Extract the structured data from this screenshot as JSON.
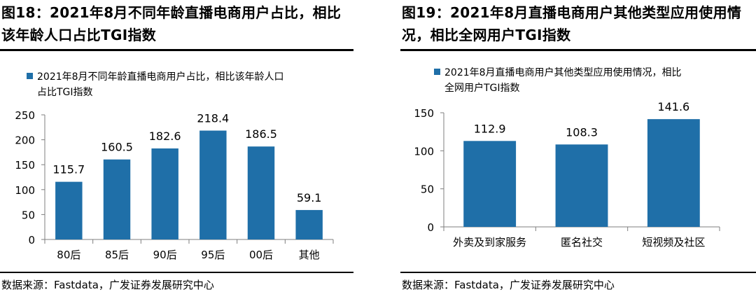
{
  "colors": {
    "bar": "#1f6fa8",
    "axis": "#7f7f7f",
    "text": "#000000"
  },
  "left": {
    "title_line1": "图18：2021年8月不同年龄直播电商用户占比，相比",
    "title_line2": "该年龄人口占比TGI指数",
    "source": "数据来源：Fastdata，广发证券发展研究中心"
  },
  "right": {
    "title_line1": "图19：2021年8月直播电商用户其他类型应用使用情",
    "title_line2": "况，相比全网用户TGI指数",
    "source": "数据来源：Fastdata，广发证券发展研究中心"
  },
  "chart_data": [
    {
      "type": "bar",
      "legend": [
        "2021年8月不同年龄直播电商用户占比，相比该年龄人口",
        "占比TGI指数"
      ],
      "categories": [
        "80后",
        "85后",
        "90后",
        "95后",
        "00后",
        "其他"
      ],
      "values": [
        115.7,
        160.5,
        182.6,
        218.4,
        186.5,
        59.1
      ],
      "value_labels": [
        "115.7",
        "160.5",
        "182.6",
        "218.4",
        "186.5",
        "59.1"
      ],
      "ylim": [
        0,
        250
      ],
      "yticks": [
        0,
        50,
        100,
        150,
        200,
        250
      ],
      "xlabel": "",
      "ylabel": "",
      "grid": false,
      "legend_position": "top-left"
    },
    {
      "type": "bar",
      "legend": [
        "2021年8月直播电商用户其他类型应用使用情况，相比",
        "全网用户TGI指数"
      ],
      "categories": [
        "外卖及到家服务",
        "匿名社交",
        "短视频及社区"
      ],
      "values": [
        112.9,
        108.3,
        141.6
      ],
      "value_labels": [
        "112.9",
        "108.3",
        "141.6"
      ],
      "ylim": [
        0,
        150
      ],
      "yticks": [
        0,
        50,
        100,
        150
      ],
      "xlabel": "",
      "ylabel": "",
      "grid": false,
      "legend_position": "top-left"
    }
  ]
}
